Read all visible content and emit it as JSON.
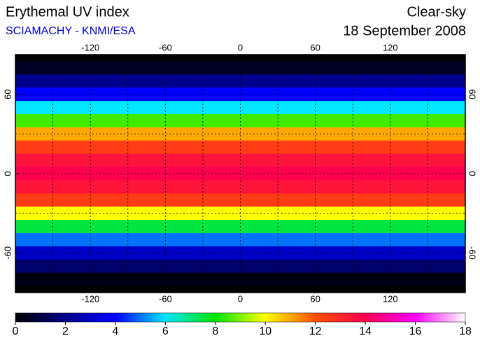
{
  "title": "Erythemal UV index",
  "subtitle": "SCIAMACHY - KNMI/ESA",
  "condition": "Clear-sky",
  "date": "18 September 2008",
  "map": {
    "type": "map",
    "xlim": [
      -180,
      180
    ],
    "ylim": [
      -90,
      90
    ],
    "xticks": [
      -120,
      -60,
      0,
      60,
      120
    ],
    "yticks": [
      -60,
      0,
      60
    ],
    "lon_grid": [
      -150,
      -120,
      -90,
      -60,
      -30,
      0,
      30,
      60,
      90,
      120,
      150
    ],
    "lat_grid": [
      -60,
      -30,
      0,
      30,
      60
    ],
    "zonal_lat": [
      90,
      80,
      70,
      60,
      50,
      40,
      30,
      20,
      10,
      0,
      -10,
      -20,
      -30,
      -40,
      -50,
      -60,
      -70,
      -80,
      -90
    ],
    "zonal_uv": [
      0,
      0.5,
      2,
      4,
      6,
      8.5,
      11,
      12.5,
      13.5,
      14,
      13.5,
      12.5,
      10,
      7.5,
      5,
      3,
      1.5,
      0.3,
      0
    ]
  },
  "colorbar": {
    "range": [
      0,
      18
    ],
    "ticks": [
      0,
      2,
      4,
      6,
      8,
      10,
      12,
      14,
      16,
      18
    ],
    "colors": [
      "#000000",
      "#00008c",
      "#0000ff",
      "#00e6ff",
      "#00e600",
      "#ffff00",
      "#ff5000",
      "#ff0050",
      "#ff00ff",
      "#ffffff"
    ]
  }
}
